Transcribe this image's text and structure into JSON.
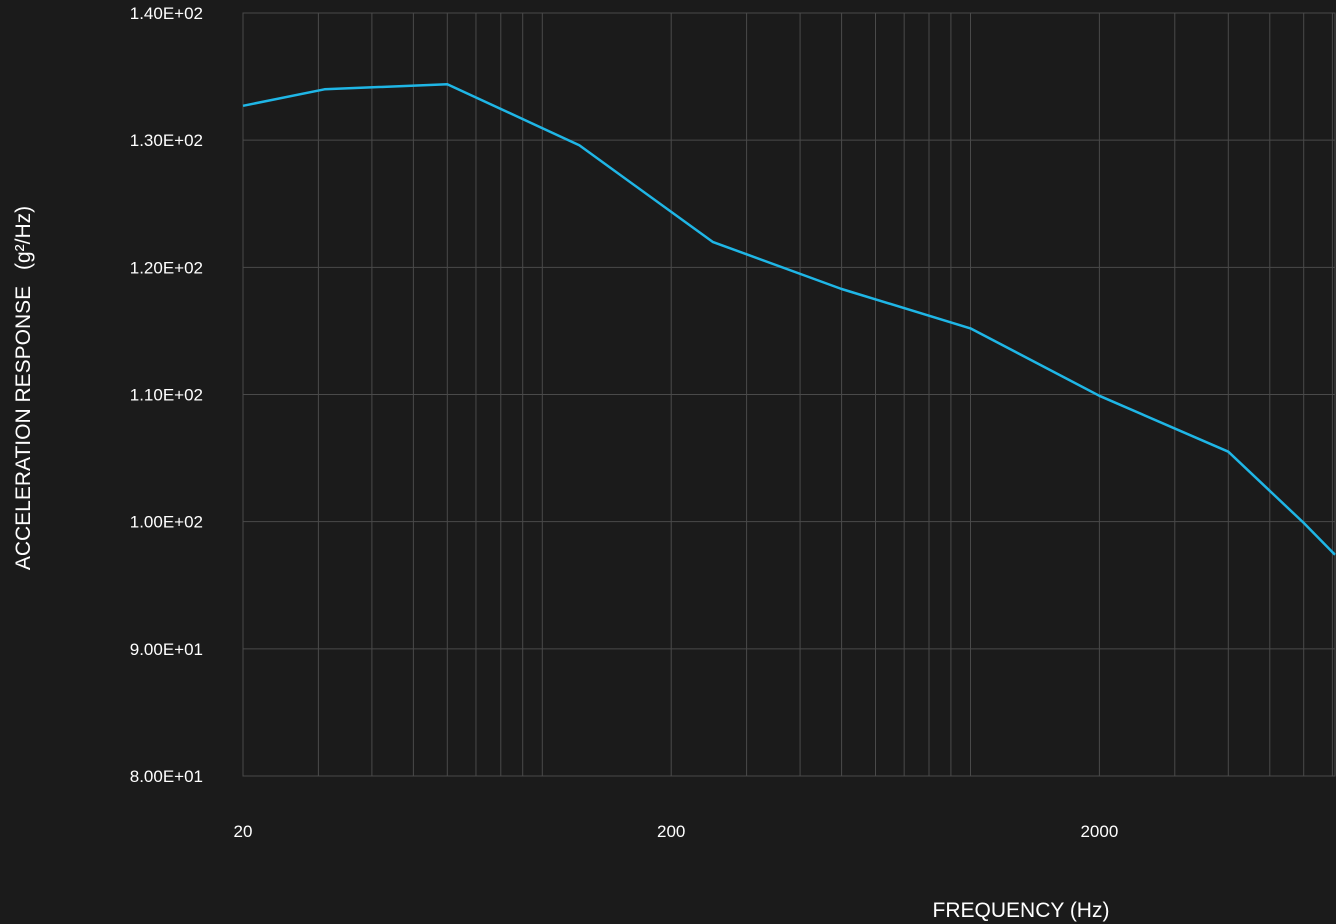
{
  "chart_data": {
    "type": "line",
    "title": "",
    "xlabel": "FREQUENCY (Hz)",
    "ylabel_main": "ACCELERATION RESPONSE",
    "ylabel_unit": "(g²/Hz)",
    "xscale": "log",
    "xlim": [
      20,
      7100
    ],
    "ylim": [
      80,
      140
    ],
    "x_ticks": [
      {
        "value": 20,
        "label": "20"
      },
      {
        "value": 200,
        "label": "200"
      },
      {
        "value": 2000,
        "label": "2000"
      }
    ],
    "y_ticks": [
      {
        "value": 80,
        "label": "8.00E+01"
      },
      {
        "value": 90,
        "label": "9.00E+01"
      },
      {
        "value": 100,
        "label": "1.00E+02"
      },
      {
        "value": 110,
        "label": "1.10E+02"
      },
      {
        "value": 120,
        "label": "1.20E+02"
      },
      {
        "value": 130,
        "label": "1.30E+02"
      },
      {
        "value": 140,
        "label": "1.40E+02"
      }
    ],
    "grid": true,
    "legend": "none",
    "series": [
      {
        "color": "#1fb6e6",
        "x": [
          20,
          31,
          60,
          122,
          250,
          500,
          1000,
          2000,
          4000,
          6000,
          7100
        ],
        "y": [
          132.7,
          134.0,
          134.4,
          129.6,
          122.0,
          118.3,
          115.2,
          109.9,
          105.5,
          99.9,
          97.4
        ]
      }
    ]
  }
}
